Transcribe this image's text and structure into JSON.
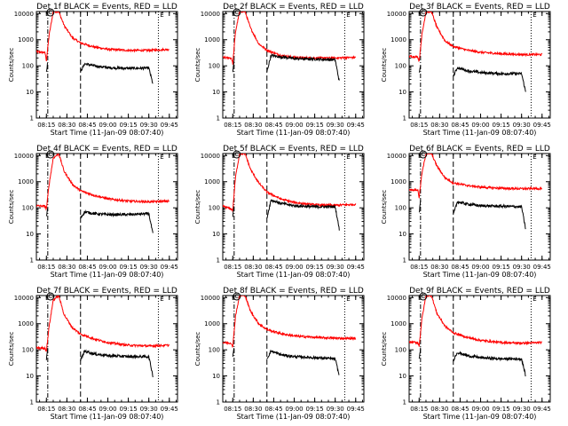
{
  "chart_data": [
    {
      "type": "line",
      "title": "Det 1f BLACK = Events, RED = LLD",
      "xlabel": "Start Time (11-Jan-09 08:07:40)",
      "ylabel": "Counts/sec",
      "yscale": "log",
      "ylim": [
        1,
        12000
      ],
      "xlim": [
        "08:07:40",
        "09:51:00"
      ],
      "x_tick_labels": [
        "08:15",
        "08:30",
        "08:45",
        "09:00",
        "09:15",
        "09:30",
        "09:45"
      ],
      "y_tick_labels": [
        "1",
        "10",
        "100",
        "1000",
        "10000"
      ],
      "markers": [
        "C",
        "E"
      ],
      "vlines_dashdot": [
        "08:16"
      ],
      "vlines_dashed": [
        "08:40"
      ],
      "vlines_dotted": [
        "09:37"
      ],
      "series": [
        {
          "color": "#ff0000",
          "x": [
            "08:07",
            "08:14",
            "08:15",
            "08:17",
            "08:20",
            "08:24",
            "08:28",
            "08:34",
            "08:40",
            "08:50",
            "09:00",
            "09:15",
            "09:30",
            "09:45"
          ],
          "y": [
            350,
            320,
            160,
            1500,
            12000,
            12000,
            3500,
            1200,
            750,
            530,
            430,
            390,
            390,
            430
          ]
        },
        {
          "color": "#000000",
          "x": [
            "08:15",
            "08:16",
            "08:40",
            "08:43",
            "08:50",
            "09:00",
            "09:15",
            "09:30",
            "09:33"
          ],
          "y": [
            60,
            140,
            60,
            120,
            100,
            85,
            80,
            82,
            20
          ]
        }
      ]
    },
    {
      "type": "line",
      "title": "Det 2f BLACK = Events, RED = LLD",
      "xlabel": "Start Time (11-Jan-09 08:07:40)",
      "ylabel": "Counts/sec",
      "yscale": "log",
      "ylim": [
        1,
        12000
      ],
      "xlim": [
        "08:07:40",
        "09:51:00"
      ],
      "x_tick_labels": [
        "08:15",
        "08:30",
        "08:45",
        "09:00",
        "09:15",
        "09:30",
        "09:45"
      ],
      "y_tick_labels": [
        "1",
        "10",
        "100",
        "1000",
        "10000"
      ],
      "markers": [
        "C",
        "E"
      ],
      "vlines_dashdot": [
        "08:16"
      ],
      "vlines_dashed": [
        "08:40"
      ],
      "vlines_dotted": [
        "09:37"
      ],
      "series": [
        {
          "color": "#ff0000",
          "x": [
            "08:07",
            "08:14",
            "08:15",
            "08:17",
            "08:20",
            "08:24",
            "08:28",
            "08:34",
            "08:40",
            "08:50",
            "09:00",
            "09:15",
            "09:30",
            "09:45"
          ],
          "y": [
            210,
            200,
            120,
            2000,
            12000,
            12000,
            2800,
            700,
            400,
            250,
            210,
            200,
            200,
            210
          ]
        },
        {
          "color": "#000000",
          "x": [
            "08:15",
            "08:16",
            "08:40",
            "08:43",
            "08:50",
            "09:00",
            "09:15",
            "09:30",
            "09:33"
          ],
          "y": [
            60,
            150,
            60,
            250,
            220,
            190,
            180,
            170,
            25
          ]
        }
      ]
    },
    {
      "type": "line",
      "title": "Det 3f BLACK = Events, RED = LLD",
      "xlabel": "Start Time (11-Jan-09 08:07:40)",
      "ylabel": "Counts/sec",
      "yscale": "log",
      "ylim": [
        1,
        12000
      ],
      "xlim": [
        "08:07:40",
        "09:51:00"
      ],
      "x_tick_labels": [
        "08:15",
        "08:30",
        "08:45",
        "09:00",
        "09:15",
        "09:30",
        "09:45"
      ],
      "y_tick_labels": [
        "1",
        "10",
        "100",
        "1000",
        "10000"
      ],
      "markers": [
        "C",
        "E"
      ],
      "vlines_dashdot": [
        "08:16"
      ],
      "vlines_dashed": [
        "08:40"
      ],
      "vlines_dotted": [
        "09:37"
      ],
      "series": [
        {
          "color": "#ff0000",
          "x": [
            "08:07",
            "08:14",
            "08:15",
            "08:17",
            "08:20",
            "08:24",
            "08:28",
            "08:34",
            "08:40",
            "08:50",
            "09:00",
            "09:15",
            "09:30",
            "09:45"
          ],
          "y": [
            230,
            220,
            150,
            1500,
            12000,
            12000,
            3000,
            900,
            550,
            400,
            330,
            290,
            270,
            270
          ]
        },
        {
          "color": "#000000",
          "x": [
            "08:15",
            "08:16",
            "08:40",
            "08:43",
            "08:50",
            "09:00",
            "09:15",
            "09:30",
            "09:33"
          ],
          "y": [
            50,
            110,
            40,
            85,
            65,
            55,
            50,
            50,
            10
          ]
        }
      ]
    },
    {
      "type": "line",
      "title": "Det 4f BLACK = Events, RED = LLD",
      "xlabel": "Start Time (11-Jan-09 08:07:40)",
      "ylabel": "Counts/sec",
      "yscale": "log",
      "ylim": [
        1,
        12000
      ],
      "xlim": [
        "08:07:40",
        "09:51:00"
      ],
      "x_tick_labels": [
        "08:15",
        "08:30",
        "08:45",
        "09:00",
        "09:15",
        "09:30",
        "09:45"
      ],
      "y_tick_labels": [
        "1",
        "10",
        "100",
        "1000",
        "10000"
      ],
      "markers": [
        "C",
        "E"
      ],
      "vlines_dashdot": [
        "08:16"
      ],
      "vlines_dashed": [
        "08:40"
      ],
      "vlines_dotted": [
        "09:37"
      ],
      "series": [
        {
          "color": "#ff0000",
          "x": [
            "08:07",
            "08:14",
            "08:15",
            "08:17",
            "08:20",
            "08:24",
            "08:28",
            "08:34",
            "08:40",
            "08:50",
            "09:00",
            "09:15",
            "09:30",
            "09:45"
          ],
          "y": [
            120,
            115,
            90,
            800,
            8000,
            12000,
            2500,
            800,
            450,
            300,
            220,
            180,
            170,
            180
          ]
        },
        {
          "color": "#000000",
          "x": [
            "08:15",
            "08:16",
            "08:40",
            "08:43",
            "08:50",
            "09:00",
            "09:15",
            "09:30",
            "09:33"
          ],
          "y": [
            45,
            100,
            40,
            70,
            60,
            55,
            55,
            60,
            10
          ]
        }
      ]
    },
    {
      "type": "line",
      "title": "Det 5f BLACK = Events, RED = LLD",
      "xlabel": "Start Time (11-Jan-09 08:07:40)",
      "ylabel": "Counts/sec",
      "yscale": "log",
      "ylim": [
        1,
        12000
      ],
      "xlim": [
        "08:07:40",
        "09:51:00"
      ],
      "x_tick_labels": [
        "08:15",
        "08:30",
        "08:45",
        "09:00",
        "09:15",
        "09:30",
        "09:45"
      ],
      "y_tick_labels": [
        "1",
        "10",
        "100",
        "1000",
        "10000"
      ],
      "markers": [
        "C",
        "E"
      ],
      "vlines_dashdot": [
        "08:16"
      ],
      "vlines_dashed": [
        "08:40"
      ],
      "vlines_dotted": [
        "09:37"
      ],
      "series": [
        {
          "color": "#ff0000",
          "x": [
            "08:07",
            "08:14",
            "08:15",
            "08:17",
            "08:20",
            "08:24",
            "08:28",
            "08:34",
            "08:40",
            "08:50",
            "09:00",
            "09:15",
            "09:30",
            "09:45"
          ],
          "y": [
            120,
            90,
            80,
            1500,
            12000,
            12000,
            3000,
            900,
            400,
            220,
            160,
            130,
            125,
            135
          ]
        },
        {
          "color": "#000000",
          "x": [
            "08:15",
            "08:16",
            "08:40",
            "08:43",
            "08:50",
            "09:00",
            "09:15",
            "09:30",
            "09:33"
          ],
          "y": [
            50,
            120,
            40,
            200,
            150,
            120,
            110,
            110,
            15
          ]
        }
      ]
    },
    {
      "type": "line",
      "title": "Det 6f BLACK = Events, RED = LLD",
      "xlabel": "Start Time (11-Jan-09 08:07:40)",
      "ylabel": "Counts/sec",
      "yscale": "log",
      "ylim": [
        1,
        12000
      ],
      "xlim": [
        "08:07:40",
        "09:51:00"
      ],
      "x_tick_labels": [
        "08:15",
        "08:30",
        "08:45",
        "09:00",
        "09:15",
        "09:30",
        "09:45"
      ],
      "y_tick_labels": [
        "1",
        "10",
        "100",
        "1000",
        "10000"
      ],
      "markers": [
        "C",
        "E"
      ],
      "vlines_dashdot": [
        "08:16"
      ],
      "vlines_dashed": [
        "08:40"
      ],
      "vlines_dotted": [
        "09:37"
      ],
      "series": [
        {
          "color": "#ff0000",
          "x": [
            "08:07",
            "08:14",
            "08:15",
            "08:17",
            "08:20",
            "08:24",
            "08:28",
            "08:34",
            "08:40",
            "08:50",
            "09:00",
            "09:15",
            "09:30",
            "09:45"
          ],
          "y": [
            500,
            480,
            250,
            2000,
            12000,
            12000,
            4000,
            1400,
            900,
            720,
            620,
            560,
            540,
            550
          ]
        },
        {
          "color": "#000000",
          "x": [
            "08:15",
            "08:16",
            "08:40",
            "08:43",
            "08:50",
            "09:00",
            "09:15",
            "09:30",
            "09:33"
          ],
          "y": [
            60,
            180,
            55,
            170,
            140,
            120,
            115,
            110,
            15
          ]
        }
      ]
    },
    {
      "type": "line",
      "title": "Det 7f BLACK = Events, RED = LLD",
      "xlabel": "Start Time (11-Jan-09 08:07:40)",
      "ylabel": "Counts/sec",
      "yscale": "log",
      "ylim": [
        1,
        12000
      ],
      "xlim": [
        "08:07:40",
        "09:51:00"
      ],
      "x_tick_labels": [
        "08:15",
        "08:30",
        "08:45",
        "09:00",
        "09:15",
        "09:30",
        "09:45"
      ],
      "y_tick_labels": [
        "1",
        "10",
        "100",
        "1000",
        "10000"
      ],
      "markers": [
        "C",
        "E"
      ],
      "vlines_dashdot": [
        "08:16"
      ],
      "vlines_dashed": [
        "08:40"
      ],
      "vlines_dotted": [
        "09:37"
      ],
      "series": [
        {
          "color": "#ff0000",
          "x": [
            "08:07",
            "08:14",
            "08:15",
            "08:17",
            "08:20",
            "08:24",
            "08:28",
            "08:34",
            "08:40",
            "08:50",
            "09:00",
            "09:15",
            "09:30",
            "09:45"
          ],
          "y": [
            120,
            115,
            90,
            800,
            8000,
            12000,
            2200,
            700,
            400,
            260,
            190,
            150,
            140,
            150
          ]
        },
        {
          "color": "#000000",
          "x": [
            "08:15",
            "08:16",
            "08:40",
            "08:43",
            "08:50",
            "09:00",
            "09:15",
            "09:30",
            "09:33"
          ],
          "y": [
            45,
            110,
            40,
            90,
            70,
            60,
            55,
            55,
            10
          ]
        }
      ]
    },
    {
      "type": "line",
      "title": "Det 8f BLACK = Events, RED = LLD",
      "xlabel": "Start Time (11-Jan-09 08:07:40)",
      "ylabel": "Counts/sec",
      "yscale": "log",
      "ylim": [
        1,
        12000
      ],
      "xlim": [
        "08:07:40",
        "09:51:00"
      ],
      "x_tick_labels": [
        "08:15",
        "08:30",
        "08:45",
        "09:00",
        "09:15",
        "09:30",
        "09:45"
      ],
      "y_tick_labels": [
        "1",
        "10",
        "100",
        "1000",
        "10000"
      ],
      "markers": [
        "C",
        "E"
      ],
      "vlines_dashdot": [
        "08:16"
      ],
      "vlines_dashed": [
        "08:40"
      ],
      "vlines_dotted": [
        "09:37"
      ],
      "series": [
        {
          "color": "#ff0000",
          "x": [
            "08:07",
            "08:14",
            "08:15",
            "08:17",
            "08:20",
            "08:24",
            "08:28",
            "08:34",
            "08:40",
            "08:50",
            "09:00",
            "09:15",
            "09:30",
            "09:45"
          ],
          "y": [
            190,
            180,
            130,
            2000,
            12000,
            12000,
            3000,
            1000,
            600,
            420,
            340,
            300,
            280,
            270
          ]
        },
        {
          "color": "#000000",
          "x": [
            "08:15",
            "08:16",
            "08:40",
            "08:43",
            "08:50",
            "09:00",
            "09:15",
            "09:30",
            "09:33"
          ],
          "y": [
            50,
            130,
            45,
            90,
            65,
            55,
            50,
            45,
            10
          ]
        }
      ]
    },
    {
      "type": "line",
      "title": "Det 9f BLACK = Events, RED = LLD",
      "xlabel": "Start Time (11-Jan-09 08:07:40)",
      "ylabel": "Counts/sec",
      "yscale": "log",
      "ylim": [
        1,
        12000
      ],
      "xlim": [
        "08:07:40",
        "09:51:00"
      ],
      "x_tick_labels": [
        "08:15",
        "08:30",
        "08:45",
        "09:00",
        "09:15",
        "09:30",
        "09:45"
      ],
      "y_tick_labels": [
        "1",
        "10",
        "100",
        "1000",
        "10000"
      ],
      "markers": [
        "C",
        "E"
      ],
      "vlines_dashdot": [
        "08:16"
      ],
      "vlines_dashed": [
        "08:40"
      ],
      "vlines_dotted": [
        "09:37"
      ],
      "series": [
        {
          "color": "#ff0000",
          "x": [
            "08:07",
            "08:14",
            "08:15",
            "08:17",
            "08:20",
            "08:24",
            "08:28",
            "08:34",
            "08:40",
            "08:50",
            "09:00",
            "09:15",
            "09:30",
            "09:45"
          ],
          "y": [
            200,
            190,
            140,
            1500,
            12000,
            12000,
            2500,
            800,
            450,
            300,
            230,
            190,
            180,
            190
          ]
        },
        {
          "color": "#000000",
          "x": [
            "08:15",
            "08:16",
            "08:40",
            "08:43",
            "08:50",
            "09:00",
            "09:15",
            "09:30",
            "09:33"
          ],
          "y": [
            45,
            110,
            40,
            80,
            60,
            50,
            45,
            45,
            10
          ]
        }
      ]
    }
  ]
}
